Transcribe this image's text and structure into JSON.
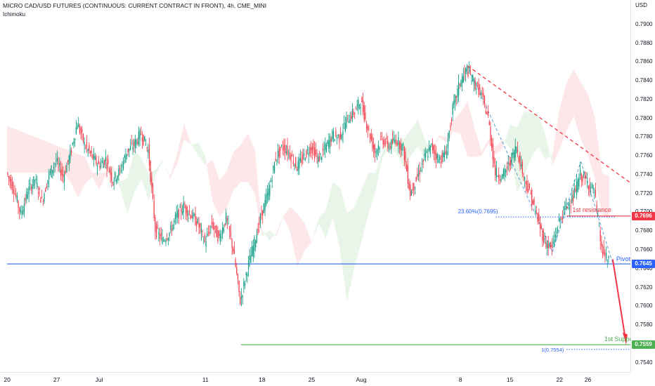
{
  "header": {
    "title": "MICRO CAD/USD FUTURES (CONTINUOUS: CURRENT CONTRACT IN FRONT), 4h, CME_MINI",
    "indicator": "Ichimoku"
  },
  "chart_data": {
    "type": "candlestick",
    "currency_label": "USD",
    "ylim": [
      0.753,
      0.792
    ],
    "y_ticks": [
      "0.7900",
      "0.7880",
      "0.7860",
      "0.7840",
      "0.7820",
      "0.7800",
      "0.7780",
      "0.7760",
      "0.7740",
      "0.7720",
      "0.7700",
      "0.7680",
      "0.7660",
      "0.7640",
      "0.7620",
      "0.7600",
      "0.7580",
      "0.7560",
      "0.7540"
    ],
    "x_ticks": [
      "20",
      "27",
      "Jul",
      "11",
      "18",
      "25",
      "Aug",
      "8",
      "15",
      "22",
      "26"
    ],
    "x_tick_positions": [
      0,
      7,
      13,
      28,
      36,
      43,
      50,
      64,
      71,
      78,
      82
    ],
    "x_range": [
      -1.0,
      88.0
    ],
    "close_path": [
      {
        "x": 0,
        "y": 0.7742
      },
      {
        "x": 1,
        "y": 0.7725
      },
      {
        "x": 2,
        "y": 0.7698
      },
      {
        "x": 3,
        "y": 0.7722
      },
      {
        "x": 4,
        "y": 0.7735
      },
      {
        "x": 5,
        "y": 0.7712
      },
      {
        "x": 6,
        "y": 0.774
      },
      {
        "x": 7,
        "y": 0.7755
      },
      {
        "x": 8,
        "y": 0.7738
      },
      {
        "x": 9,
        "y": 0.7762
      },
      {
        "x": 10,
        "y": 0.7795
      },
      {
        "x": 11,
        "y": 0.7772
      },
      {
        "x": 12,
        "y": 0.776
      },
      {
        "x": 13,
        "y": 0.775
      },
      {
        "x": 14,
        "y": 0.7756
      },
      {
        "x": 15,
        "y": 0.7734
      },
      {
        "x": 16,
        "y": 0.7744
      },
      {
        "x": 17,
        "y": 0.7765
      },
      {
        "x": 18,
        "y": 0.7772
      },
      {
        "x": 19,
        "y": 0.7784
      },
      {
        "x": 20,
        "y": 0.7766
      },
      {
        "x": 21,
        "y": 0.7682
      },
      {
        "x": 22,
        "y": 0.767
      },
      {
        "x": 23,
        "y": 0.7678
      },
      {
        "x": 24,
        "y": 0.7696
      },
      {
        "x": 25,
        "y": 0.7706
      },
      {
        "x": 26,
        "y": 0.7698
      },
      {
        "x": 27,
        "y": 0.7688
      },
      {
        "x": 28,
        "y": 0.7668
      },
      {
        "x": 29,
        "y": 0.7688
      },
      {
        "x": 30,
        "y": 0.7672
      },
      {
        "x": 31,
        "y": 0.7694
      },
      {
        "x": 32,
        "y": 0.766
      },
      {
        "x": 33,
        "y": 0.7605
      },
      {
        "x": 34,
        "y": 0.764
      },
      {
        "x": 35,
        "y": 0.7668
      },
      {
        "x": 36,
        "y": 0.7698
      },
      {
        "x": 37,
        "y": 0.7722
      },
      {
        "x": 38,
        "y": 0.7758
      },
      {
        "x": 39,
        "y": 0.777
      },
      {
        "x": 40,
        "y": 0.7762
      },
      {
        "x": 41,
        "y": 0.7748
      },
      {
        "x": 42,
        "y": 0.776
      },
      {
        "x": 43,
        "y": 0.777
      },
      {
        "x": 44,
        "y": 0.7756
      },
      {
        "x": 45,
        "y": 0.7768
      },
      {
        "x": 46,
        "y": 0.7782
      },
      {
        "x": 47,
        "y": 0.778
      },
      {
        "x": 48,
        "y": 0.7798
      },
      {
        "x": 49,
        "y": 0.7806
      },
      {
        "x": 50,
        "y": 0.7818
      },
      {
        "x": 51,
        "y": 0.779
      },
      {
        "x": 52,
        "y": 0.7764
      },
      {
        "x": 53,
        "y": 0.7778
      },
      {
        "x": 54,
        "y": 0.777
      },
      {
        "x": 55,
        "y": 0.7778
      },
      {
        "x": 56,
        "y": 0.7768
      },
      {
        "x": 57,
        "y": 0.772
      },
      {
        "x": 58,
        "y": 0.7738
      },
      {
        "x": 59,
        "y": 0.7758
      },
      {
        "x": 60,
        "y": 0.777
      },
      {
        "x": 61,
        "y": 0.7756
      },
      {
        "x": 62,
        "y": 0.7762
      },
      {
        "x": 63,
        "y": 0.781
      },
      {
        "x": 64,
        "y": 0.7838
      },
      {
        "x": 65,
        "y": 0.7852
      },
      {
        "x": 66,
        "y": 0.7838
      },
      {
        "x": 67,
        "y": 0.7826
      },
      {
        "x": 68,
        "y": 0.78
      },
      {
        "x": 69,
        "y": 0.7742
      },
      {
        "x": 70,
        "y": 0.7738
      },
      {
        "x": 71,
        "y": 0.7752
      },
      {
        "x": 72,
        "y": 0.777
      },
      {
        "x": 73,
        "y": 0.7738
      },
      {
        "x": 74,
        "y": 0.7718
      },
      {
        "x": 75,
        "y": 0.7692
      },
      {
        "x": 76,
        "y": 0.7668
      },
      {
        "x": 77,
        "y": 0.7662
      },
      {
        "x": 78,
        "y": 0.769
      },
      {
        "x": 79,
        "y": 0.7706
      },
      {
        "x": 80,
        "y": 0.7716
      },
      {
        "x": 81,
        "y": 0.774
      },
      {
        "x": 82,
        "y": 0.7732
      },
      {
        "x": 83,
        "y": 0.7722
      },
      {
        "x": 84,
        "y": 0.766
      },
      {
        "x": 85,
        "y": 0.7647
      }
    ],
    "overlays": {
      "pivot": {
        "value": 0.7645,
        "label": "Pivot",
        "price_label": "0.7645",
        "color": "#2962ff"
      },
      "resistance": {
        "value": 0.7696,
        "label": "1st resistance",
        "price_label": "0.7696",
        "color": "#f23645"
      },
      "support": {
        "value": 0.7559,
        "label": "1st Support",
        "price_label": "0.7559",
        "color": "#4caf50"
      },
      "fib_2360": {
        "value": 0.7695,
        "label": "23.60%(0.7695)"
      },
      "fib_1": {
        "value": 0.7554,
        "label": "1(0.7554)"
      },
      "fib_color": "#2962ff"
    }
  }
}
